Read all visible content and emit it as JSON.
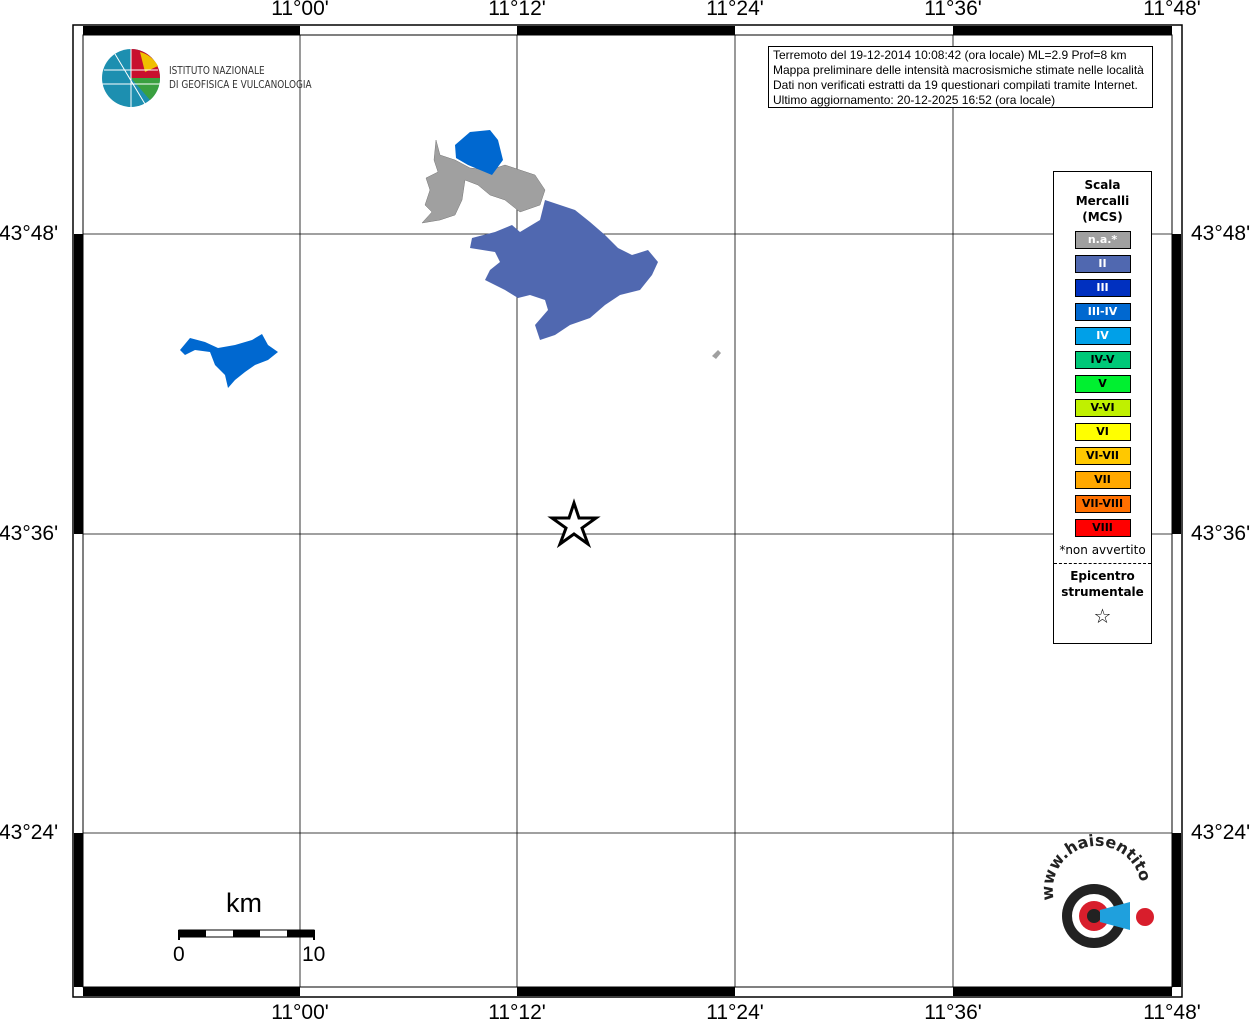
{
  "map": {
    "lon_ticks": [
      "11°00'",
      "11°12'",
      "11°24'",
      "11°36'",
      "11°48'"
    ],
    "lat_ticks": [
      "43°48'",
      "43°36'",
      "43°24'"
    ],
    "projection_extent": {
      "lon_min": "10°48'",
      "lon_max": "11°48'",
      "lat_min": "43°16'",
      "lat_max": "43°56'"
    }
  },
  "logo": {
    "name": "INGV",
    "line1": "ISTITUTO NAZIONALE",
    "line2": "DI GEOFISICA E VULCANOLOGIA"
  },
  "info": {
    "lines": [
      "Terremoto del 19-12-2014 10:08:42 (ora locale) ML=2.9 Prof=8 km",
      "Mappa preliminare delle intensità macrosismiche stimate nelle località",
      "Dati non verificati estratti da 19 questionari compilati tramite Internet.",
      "Ultimo aggiornamento: 20-12-2025 16:52 (ora locale)"
    ]
  },
  "legend": {
    "title_lines": [
      "Scala",
      "Mercalli",
      "(MCS)"
    ],
    "classes": [
      {
        "label": "n.a.*",
        "color": "#a0a0a0",
        "text": "#ffffff"
      },
      {
        "label": "II",
        "color": "#5068b0",
        "text": "#ffffff"
      },
      {
        "label": "III",
        "color": "#0030c0",
        "text": "#ffffff"
      },
      {
        "label": "III-IV",
        "color": "#0068d0",
        "text": "#ffffff"
      },
      {
        "label": "IV",
        "color": "#00a0e8",
        "text": "#ffffff"
      },
      {
        "label": "IV-V",
        "color": "#00c878",
        "text": "#000000"
      },
      {
        "label": "V",
        "color": "#00f030",
        "text": "#000000"
      },
      {
        "label": "V-VI",
        "color": "#c0f000",
        "text": "#000000"
      },
      {
        "label": "VI",
        "color": "#ffff00",
        "text": "#000000"
      },
      {
        "label": "VI-VII",
        "color": "#ffc800",
        "text": "#000000"
      },
      {
        "label": "VII",
        "color": "#ffa800",
        "text": "#000000"
      },
      {
        "label": "VII-VIII",
        "color": "#ff7000",
        "text": "#000000"
      },
      {
        "label": "VIII",
        "color": "#ff0000",
        "text": "#000000"
      }
    ],
    "note": "*non avvertito",
    "epicenter_lines": [
      "Epicentro",
      "strumentale"
    ]
  },
  "scalebar": {
    "unit": "km",
    "min": "0",
    "max": "10"
  },
  "areas": [
    {
      "intensity": "n.a.",
      "color": "#a0a0a0"
    },
    {
      "intensity": "II",
      "color": "#5068b0"
    },
    {
      "intensity": "III-IV",
      "color": "#0068d0"
    }
  ],
  "watermark": {
    "text": "www.haisentitoilterremoto.it"
  }
}
